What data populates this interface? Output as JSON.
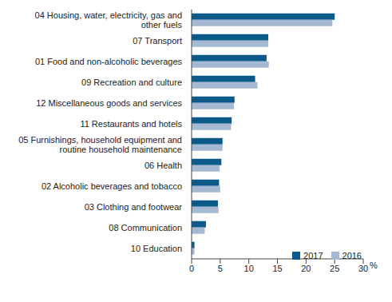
{
  "chart_data": {
    "type": "bar",
    "orientation": "horizontal",
    "categories": [
      "04 Housing, water, electricity, gas and other fuels",
      "07 Transport",
      "01 Food and non-alcoholic beverages",
      "09 Recreation and culture",
      "12 Miscellaneous goods and services",
      "11 Restaurants and hotels",
      "05 Furnishings, household equipment and routine household maintenance",
      "06 Health",
      "02 Alcoholic beverages and tobacco",
      "03 Clothing and footwear",
      "08 Communication",
      "10 Education"
    ],
    "series": [
      {
        "name": "2017",
        "color": "#0b5a8a",
        "values": [
          25.0,
          13.4,
          13.1,
          11.1,
          7.5,
          7.0,
          5.4,
          5.2,
          4.8,
          4.6,
          2.5,
          0.5
        ]
      },
      {
        "name": "2016",
        "color": "#a5b9d3",
        "values": [
          24.6,
          13.4,
          13.5,
          11.5,
          7.4,
          6.9,
          5.4,
          4.9,
          5.0,
          4.7,
          2.3,
          0.5
        ]
      }
    ],
    "xlabel": "%",
    "xlim": [
      0,
      30
    ],
    "xticks": [
      0,
      5,
      10,
      15,
      20,
      25,
      30
    ],
    "grid": false,
    "legend": "lower right"
  }
}
